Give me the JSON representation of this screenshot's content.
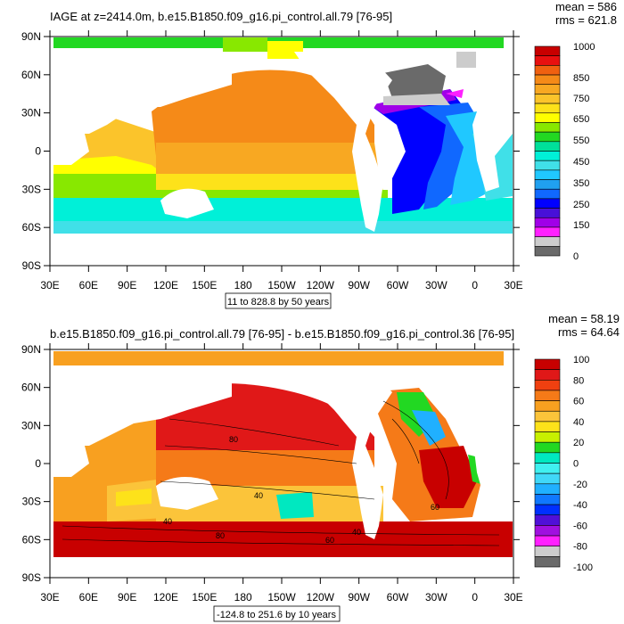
{
  "chart_data": [
    {
      "type": "heatmap",
      "title": "IAGE at z=2414.0m, b.e15.B1850.f09_g16.pi_control.all.79 [76-95]",
      "stats": {
        "mean": "mean = 586",
        "rms": "rms = 621.8"
      },
      "xticks": [
        "30E",
        "60E",
        "90E",
        "120E",
        "150E",
        "180",
        "150W",
        "120W",
        "90W",
        "60W",
        "30W",
        "0",
        "30E"
      ],
      "yticks": [
        "90N",
        "60N",
        "30N",
        "0",
        "30S",
        "60S",
        "90S"
      ],
      "contour_info": "11 to 828.8 by 50 years",
      "colorbar": {
        "labels": [
          "1000",
          "850",
          "750",
          "650",
          "550",
          "450",
          "350",
          "250",
          "150",
          "0"
        ],
        "colors": [
          "#c80000",
          "#e81010",
          "#f06010",
          "#f58a18",
          "#f8a822",
          "#fbc42b",
          "#fde21a",
          "#ffff00",
          "#88e800",
          "#22d822",
          "#00e09a",
          "#00f0d8",
          "#40e0e8",
          "#20c8ff",
          "#20a0f0",
          "#1068ff",
          "#0000ff",
          "#4810d8",
          "#a000e8",
          "#ff20ff",
          "#cccccc",
          "#6a6a6a"
        ]
      }
    },
    {
      "type": "heatmap",
      "title": "b.e15.B1850.f09_g16.pi_control.all.79 [76-95] - b.e15.B1850.f09_g16.pi_control.36 [76-95]",
      "stats": {
        "mean": "mean = 58.19",
        "rms": "rms = 64.64"
      },
      "xticks": [
        "30E",
        "60E",
        "90E",
        "120E",
        "150E",
        "180",
        "150W",
        "120W",
        "90W",
        "60W",
        "30W",
        "0",
        "30E"
      ],
      "yticks": [
        "90N",
        "60N",
        "30N",
        "0",
        "30S",
        "60S",
        "90S"
      ],
      "contour_info": "-124.8 to 251.6 by 10 years",
      "contour_labels": [
        "80",
        "40",
        "40",
        "60",
        "40",
        "60",
        "80"
      ],
      "colorbar": {
        "labels": [
          "100",
          "80",
          "60",
          "40",
          "20",
          "0",
          "-20",
          "-40",
          "-60",
          "-80",
          "-100"
        ],
        "colors": [
          "#c80000",
          "#e01818",
          "#f04010",
          "#f57a18",
          "#f8a020",
          "#fbc43a",
          "#fde21a",
          "#c8f000",
          "#22d822",
          "#00e8c0",
          "#40f0f0",
          "#40d8f8",
          "#20b0ff",
          "#1078ff",
          "#0030ff",
          "#5010d8",
          "#a010e0",
          "#ff20ff",
          "#cccccc",
          "#6a6a6a"
        ]
      }
    }
  ]
}
